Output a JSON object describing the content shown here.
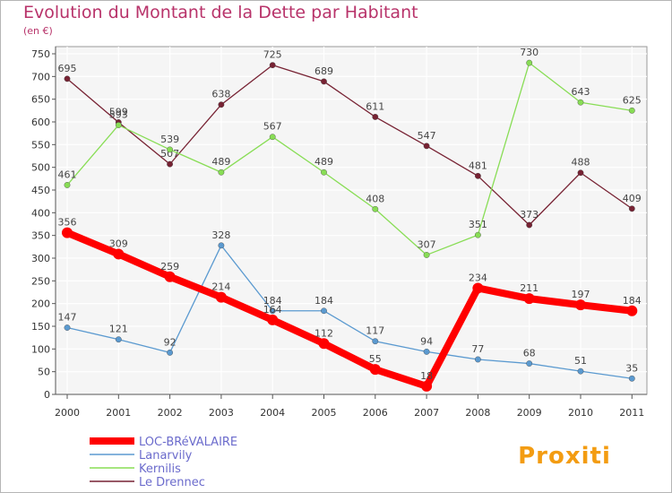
{
  "title": "Evolution du Montant de la Dette par Habitant",
  "unit": "(en €)",
  "logo": "Proxiti",
  "chart_data": {
    "type": "line",
    "categories": [
      "2000",
      "2001",
      "2002",
      "2003",
      "2004",
      "2005",
      "2006",
      "2007",
      "2008",
      "2009",
      "2010",
      "2011"
    ],
    "ylim": [
      0,
      750
    ],
    "yticks": [
      0,
      50,
      100,
      150,
      200,
      250,
      300,
      350,
      400,
      450,
      500,
      550,
      600,
      650,
      700,
      750
    ],
    "grid": true,
    "legend_position": "bottom-left",
    "series": [
      {
        "name": "LOC-BRéVALAIRE",
        "color": "#ff0000",
        "values": [
          356,
          309,
          259,
          214,
          164,
          112,
          55,
          18,
          234,
          211,
          197,
          184
        ]
      },
      {
        "name": "Lanarvily",
        "color": "#5b9ad0",
        "values": [
          147,
          121,
          92,
          328,
          184,
          184,
          117,
          94,
          77,
          68,
          51,
          35
        ]
      },
      {
        "name": "Kernilis",
        "color": "#88dd55",
        "values": [
          461,
          593,
          539,
          489,
          567,
          489,
          408,
          307,
          351,
          730,
          643,
          625
        ]
      },
      {
        "name": "Le Drennec",
        "color": "#772233",
        "values": [
          695,
          599,
          507,
          638,
          725,
          689,
          611,
          547,
          481,
          373,
          488,
          409
        ]
      }
    ]
  }
}
